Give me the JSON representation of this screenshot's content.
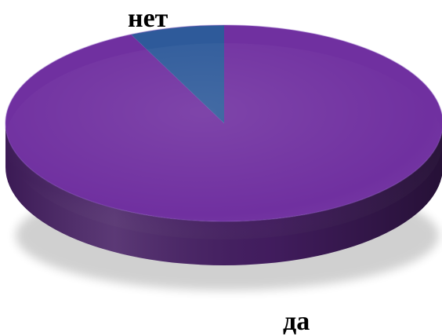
{
  "chart_data": {
    "type": "pie",
    "style": "3d",
    "title": "",
    "slices": [
      {
        "label": "да",
        "value": 93,
        "color": "#7030a0"
      },
      {
        "label": "нет",
        "value": 7,
        "color": "#2e5a9a"
      }
    ],
    "legend": "none"
  }
}
